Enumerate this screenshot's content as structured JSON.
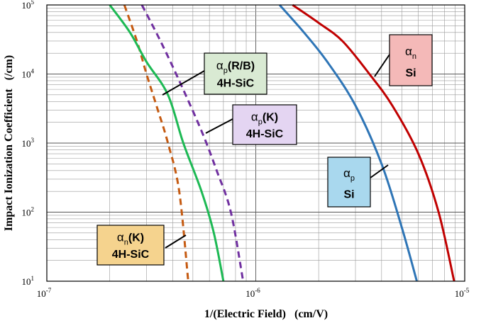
{
  "chart_data": {
    "type": "line",
    "xlabel": "1/(Electric Field)   (cm/V)",
    "ylabel": "Impact Ionization Coefficient   (/cm)",
    "x_scale": "log",
    "y_scale": "log",
    "xlim": [
      1e-07,
      1e-05
    ],
    "ylim": [
      10,
      100000
    ],
    "grid": true,
    "x_ticks": [
      {
        "value": 1e-07,
        "base": "10",
        "exp": "-7"
      },
      {
        "value": 1e-06,
        "base": "10",
        "exp": "-6"
      },
      {
        "value": 1e-05,
        "base": "10",
        "exp": "-5"
      }
    ],
    "y_ticks": [
      {
        "value": 10,
        "base": "10",
        "exp": "1"
      },
      {
        "value": 100,
        "base": "10",
        "exp": "2"
      },
      {
        "value": 1000,
        "base": "10",
        "exp": "3"
      },
      {
        "value": 10000,
        "base": "10",
        "exp": "4"
      },
      {
        "value": 100000,
        "base": "10",
        "exp": "5"
      }
    ],
    "series": [
      {
        "name": "αn(K) 4H-SiC",
        "label_main": "α",
        "label_sub": "n",
        "label_suffix": "(K)",
        "label_line2": "4H-SiC",
        "color": "#C55A11",
        "dash": true,
        "box_color": "#F5D38E",
        "x": [
          2.35e-07,
          2.7e-07,
          3e-07,
          3.4e-07,
          3.8e-07,
          4.3e-07,
          4.75e-07
        ],
        "y": [
          100000,
          30000,
          10000,
          3000,
          1000,
          200,
          10
        ]
      },
      {
        "name": "αp(R/B) 4H-SiC",
        "label_main": "α",
        "label_sub": "p",
        "label_suffix": "(R/B)",
        "label_line2": "4H-SiC",
        "color": "#1DB954",
        "dash": false,
        "box_color": "#D9EAD3",
        "x": [
          2e-07,
          2.5e-07,
          3e-07,
          3.8e-07,
          4.5e-07,
          5.5e-07,
          6.3e-07,
          7e-07
        ],
        "y": [
          100000,
          40000,
          15000,
          5000,
          1000,
          200,
          50,
          10
        ]
      },
      {
        "name": "αp(K) 4H-SiC",
        "label_main": "α",
        "label_sub": "p",
        "label_suffix": "(K)",
        "label_line2": "4H-SiC",
        "color": "#7030A0",
        "dash": true,
        "box_color": "#E4D5F2",
        "x": [
          2.85e-07,
          3.5e-07,
          4.3e-07,
          5.5e-07,
          6.5e-07,
          7.6e-07,
          8.7e-07
        ],
        "y": [
          100000,
          30000,
          8000,
          1500,
          400,
          100,
          10
        ]
      },
      {
        "name": "αp Si",
        "label_main": "α",
        "label_sub": "p",
        "label_suffix": "",
        "label_line2": "Si",
        "color": "#2E75B6",
        "dash": false,
        "box_color": "#A9D8EE",
        "x": [
          1.3e-06,
          1.7e-06,
          2.2e-06,
          3e-06,
          4e-06,
          5e-06,
          5.9e-06
        ],
        "y": [
          100000,
          40000,
          15000,
          3500,
          500,
          60,
          10
        ]
      },
      {
        "name": "αn Si",
        "label_main": "α",
        "label_sub": "n",
        "label_suffix": "",
        "label_line2": "Si",
        "color": "#C00000",
        "dash": false,
        "box_color": "#F4B9B8",
        "x": [
          1.5e-06,
          2e-06,
          2.6e-06,
          3.5e-06,
          4.5e-06,
          6e-06,
          7.5e-06,
          8.9e-06
        ],
        "y": [
          100000,
          55000,
          30000,
          10000,
          3500,
          700,
          100,
          10
        ]
      }
    ]
  }
}
